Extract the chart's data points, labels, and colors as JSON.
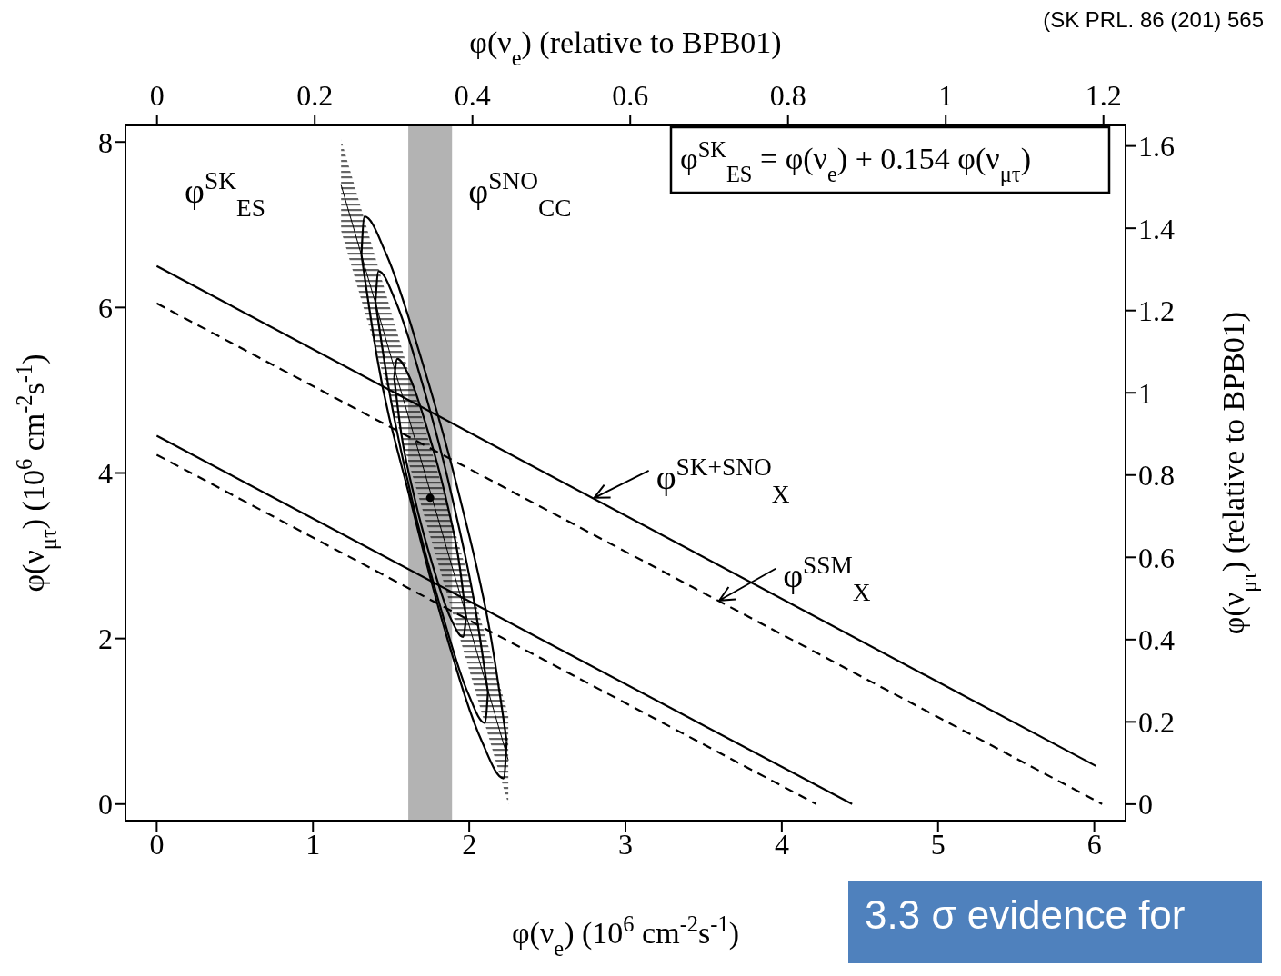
{
  "chart_data": {
    "type": "line",
    "xlabel": "φ(ν$_{e}$) (10$^{6}$ cm$^{-2}$s$^{-1}$)",
    "ylabel": "φ(ν$_{μτ}$) (10$^{6}$ cm$^{-2}$s$^{-1}$)",
    "x2label": "φ(ν$_{e}$) (relative to BPB01)",
    "y2label": "φ(ν$_{μτ}$) (relative to BPB01)",
    "xlim": [
      -0.2,
      6.2
    ],
    "xticks": [
      0,
      1,
      2,
      3,
      4,
      5,
      6
    ],
    "ylim": [
      -0.2,
      8.2
    ],
    "yticks": [
      0,
      2,
      4,
      6,
      8
    ],
    "x2lim": [
      -0.04,
      1.228
    ],
    "x2ticks": [
      0,
      0.2,
      0.4,
      0.6,
      0.8,
      1,
      1.2
    ],
    "y2lim": [
      -0.04,
      1.65
    ],
    "y2ticks": [
      0,
      0.2,
      0.4,
      0.6,
      0.8,
      1,
      1.2,
      1.4,
      1.6
    ],
    "grid": false,
    "legend": false,
    "bands": [
      {
        "axis": "x",
        "from": 1.61,
        "to": 1.89,
        "label": "φ$^{SNO}$$_{CC}$",
        "color": "#b3b3b3"
      }
    ],
    "series": [
      {
        "color": "#000000",
        "x": [
          1.18,
          2.25
        ],
        "values": [
          7.48,
          0.53
        ],
        "lower": [
          6.93,
          0
        ],
        "upper": [
          8.03,
          1.08
        ]
      },
      {
        "color": "#000000",
        "line_style": "solid",
        "x": [
          0,
          6.01
        ],
        "values": [
          6.5,
          0.46
        ]
      },
      {
        "color": "#000000",
        "line_style": "dashed",
        "x": [
          0,
          6.05
        ],
        "values": [
          6.05,
          0
        ]
      },
      {
        "color": "#000000",
        "line_style": "solid",
        "x": [
          0,
          4.45
        ],
        "values": [
          4.45,
          0
        ]
      },
      {
        "color": "#000000",
        "line_style": "dashed",
        "x": [
          0,
          4.22
        ],
        "values": [
          4.22,
          0
        ]
      },
      {
        "color": "#000000",
        "line_style": "solid",
        "x": [
          1.52,
          1.54,
          1.62,
          1.73,
          1.85,
          1.94,
          1.98
        ],
        "values": [
          5.15,
          5.38,
          5.15,
          4.54,
          3.7,
          2.86,
          2.25
        ]
      },
      {
        "color": "#000000",
        "line_style": "solid",
        "x": [
          1.52,
          1.56,
          1.65,
          1.77,
          1.88,
          1.96,
          1.98
        ],
        "values": [
          5.15,
          4.54,
          3.7,
          2.86,
          2.25,
          2.02,
          2.25
        ]
      },
      {
        "color": "#000000",
        "line_style": "solid",
        "x": [
          1.4,
          1.42,
          1.53,
          1.7,
          1.89,
          2.04,
          2.12
        ],
        "values": [
          6.07,
          6.44,
          6.07,
          5.08,
          3.71,
          2.35,
          1.35
        ]
      },
      {
        "color": "#000000",
        "line_style": "solid",
        "x": [
          1.4,
          1.48,
          1.63,
          1.82,
          1.99,
          2.1,
          2.12
        ],
        "values": [
          6.07,
          5.08,
          3.71,
          2.35,
          1.35,
          0.98,
          1.35
        ]
      },
      {
        "color": "#000000",
        "line_style": "solid",
        "x": [
          1.31,
          1.33,
          1.47,
          1.69,
          1.94,
          2.14,
          2.24
        ],
        "values": [
          6.64,
          7.1,
          6.64,
          5.4,
          3.7,
          2.0,
          0.76
        ]
      },
      {
        "color": "#000000",
        "line_style": "solid",
        "x": [
          1.31,
          1.41,
          1.62,
          1.86,
          2.08,
          2.22,
          2.24
        ],
        "values": [
          6.64,
          5.4,
          3.7,
          2.0,
          0.76,
          0.31,
          0.76
        ]
      },
      {
        "type": "scatter",
        "marker": "circle",
        "color": "#000000",
        "x": [
          1.75
        ],
        "values": [
          3.7
        ]
      }
    ],
    "annotations": [
      "φ$^{SK}$$_{ES}$",
      "φ$^{SK}$$_{ES}$ = φ(ν$_{e}$) + 0.154 φ(ν$_{μτ}$)",
      {
        "text": "φ$^{SK+SNO}$$_{X}$",
        "x": 2.8,
        "y": 3.7
      },
      {
        "text": "φ$^{SSM}$$_{X}$",
        "x": 3.6,
        "y": 2.46
      },
      "(SK PRL. 86 (201) 565",
      "3.3 σ evidence for"
    ]
  }
}
